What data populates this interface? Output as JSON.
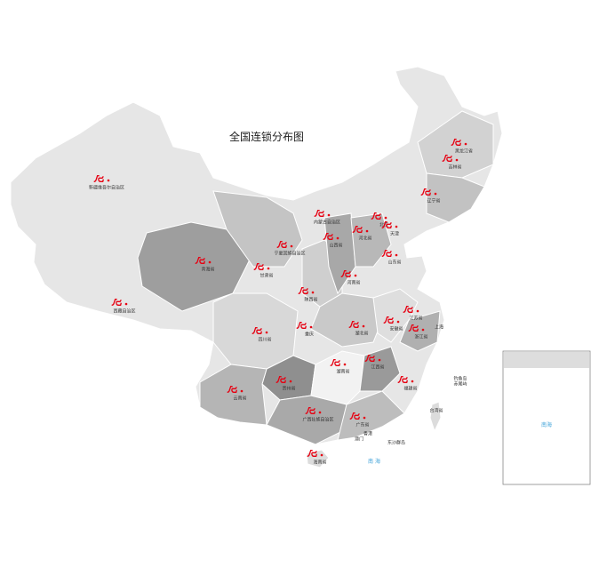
{
  "map": {
    "title": "全国连锁分布图",
    "labels": [
      "黑龙江省",
      "吉林省",
      "辽宁省",
      "新疆维吾尔自治区",
      "内蒙古自治区",
      "北京",
      "天津",
      "河北省",
      "山西省",
      "宁夏回族自治区",
      "甘肃省",
      "青海省",
      "西藏自治区",
      "陕西省",
      "山东省",
      "河南省",
      "江苏省",
      "上海",
      "安徽省",
      "浙江省",
      "湖北省",
      "四川省",
      "重庆",
      "湖南省",
      "江西省",
      "福建省",
      "贵州省",
      "云南省",
      "广西壮族自治区",
      "广东省",
      "香港",
      "澳门",
      "台湾省",
      "海南省",
      "东沙群岛",
      "钓鱼岛",
      "赤尾屿"
    ],
    "sea_label": "南 海",
    "inset_sea_label": "南海"
  }
}
